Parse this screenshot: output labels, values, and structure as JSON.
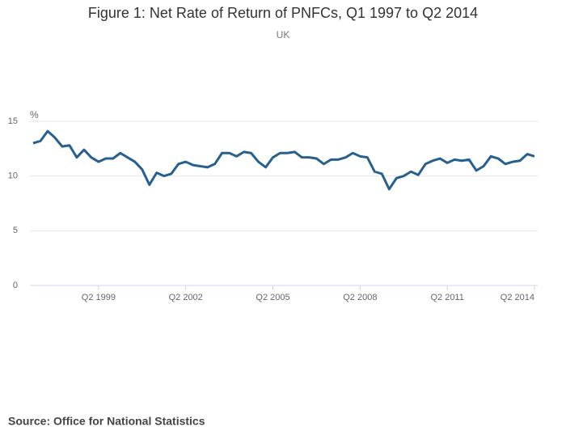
{
  "chart_data": {
    "type": "line",
    "title": "Figure 1: Net Rate of Return of PNFCs, Q1 1997 to Q2 2014",
    "subtitle": "UK",
    "y_label": "%",
    "source": "Source: Office for National Statistics",
    "categories": [
      null,
      null,
      null,
      null,
      null,
      null,
      null,
      null,
      null,
      "Q2 1999",
      null,
      null,
      null,
      null,
      null,
      null,
      null,
      null,
      null,
      null,
      null,
      "Q2 2002",
      null,
      null,
      null,
      null,
      null,
      null,
      null,
      null,
      null,
      null,
      null,
      "Q2 2005",
      null,
      null,
      null,
      null,
      null,
      null,
      null,
      null,
      null,
      null,
      null,
      "Q2 2008",
      null,
      null,
      null,
      null,
      null,
      null,
      null,
      null,
      null,
      null,
      null,
      "Q2 2011",
      null,
      null,
      null,
      null,
      null,
      null,
      null,
      null,
      null,
      null,
      null,
      "Q2 2014"
    ],
    "values": [
      13.0,
      13.2,
      14.1,
      13.5,
      12.7,
      12.8,
      11.7,
      12.4,
      11.7,
      11.3,
      11.6,
      11.6,
      12.1,
      11.7,
      11.3,
      10.6,
      9.2,
      10.3,
      10.0,
      10.2,
      11.1,
      11.3,
      11.0,
      10.9,
      10.8,
      11.1,
      12.1,
      12.1,
      11.8,
      12.2,
      12.1,
      11.3,
      10.8,
      11.7,
      12.1,
      12.1,
      12.2,
      11.7,
      11.7,
      11.6,
      11.1,
      11.5,
      11.5,
      11.7,
      12.1,
      11.8,
      11.7,
      10.4,
      10.2,
      8.8,
      9.8,
      10.0,
      10.4,
      10.1,
      11.1,
      11.4,
      11.6,
      11.2,
      11.5,
      11.4,
      11.5,
      10.5,
      10.9,
      11.8,
      11.6,
      11.1,
      11.3,
      11.4,
      12.0,
      11.8
    ],
    "color": "#27608f",
    "ylim": [
      0,
      15
    ],
    "yticks": [
      0,
      5,
      10,
      15
    ],
    "grid": true
  }
}
